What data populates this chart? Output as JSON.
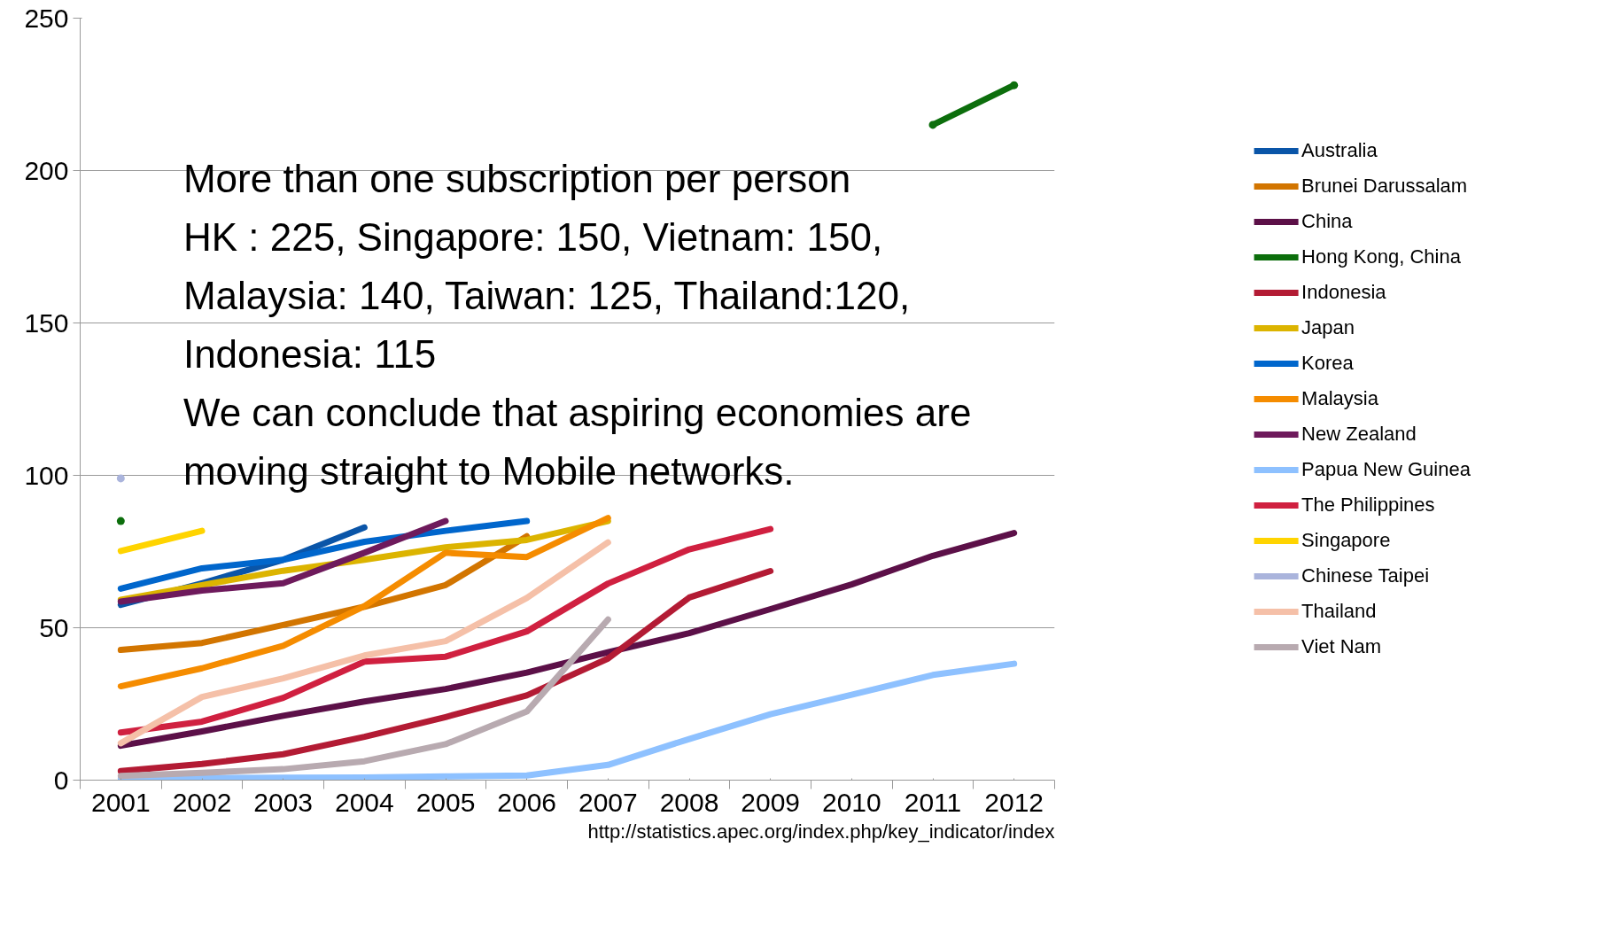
{
  "chart_data": {
    "type": "line",
    "categories": [
      "2001",
      "2002",
      "2003",
      "2004",
      "2005",
      "2006",
      "2007",
      "2008",
      "2009",
      "2010",
      "2011",
      "2012"
    ],
    "ylim": [
      0,
      250
    ],
    "yticks": [
      0,
      50,
      100,
      150,
      200,
      250
    ],
    "grid": "y",
    "legend": "right",
    "series": [
      {
        "name": "Australia",
        "color": "#0a55a8",
        "values": [
          57.5,
          64.6,
          72.3,
          82.9,
          null,
          null,
          null,
          null,
          null,
          null,
          null,
          null
        ]
      },
      {
        "name": "Brunei Darussalam",
        "color": "#d27500",
        "values": [
          42.7,
          45,
          50.9,
          56.9,
          64,
          80,
          null,
          null,
          null,
          null,
          null,
          null
        ]
      },
      {
        "name": "China",
        "color": "#5c1048",
        "values": [
          11.3,
          16,
          21.1,
          25.8,
          29.9,
          35.3,
          42,
          48.2,
          56.1,
          64.2,
          73.6,
          81.1
        ]
      },
      {
        "name": "Hong Kong, China",
        "color": "#0c6e0c",
        "marker": "circle",
        "values": [
          85,
          null,
          null,
          null,
          null,
          null,
          null,
          null,
          null,
          null,
          215,
          228
        ]
      },
      {
        "name": "Indonesia",
        "color": "#b31b34",
        "values": [
          3,
          5.3,
          8.5,
          14.2,
          20.7,
          27.8,
          39.9,
          59.9,
          68.6,
          null,
          null,
          null
        ]
      },
      {
        "name": "Japan",
        "color": "#dcb400",
        "values": [
          59.2,
          64,
          68.7,
          72.3,
          76.4,
          78.8,
          85,
          null,
          null,
          null,
          null,
          null
        ]
      },
      {
        "name": "Korea",
        "color": "#0066cc",
        "values": [
          62.8,
          69.5,
          72.3,
          78.2,
          81.8,
          85,
          null,
          null,
          null,
          null,
          null,
          null
        ]
      },
      {
        "name": "Malaysia",
        "color": "#f58c00",
        "values": [
          30.8,
          36.7,
          44.1,
          57.1,
          74.6,
          73.2,
          86,
          null,
          null,
          null,
          null,
          null
        ]
      },
      {
        "name": "New Zealand",
        "color": "#6e1a5c",
        "values": [
          58.6,
          62.2,
          64.6,
          74.6,
          85,
          null,
          null,
          null,
          null,
          null,
          null,
          null
        ]
      },
      {
        "name": "Papua New Guinea",
        "color": "#8ec1ff",
        "values": [
          0.6,
          0.7,
          0.8,
          0.9,
          1.2,
          1.5,
          5,
          13.5,
          21.6,
          28,
          34.5,
          38.2
        ]
      },
      {
        "name": "The Philippines",
        "color": "#d02040",
        "values": [
          15.6,
          19.2,
          27,
          38.9,
          40.5,
          48.8,
          64.5,
          75.7,
          82.4,
          null,
          null,
          null
        ]
      },
      {
        "name": "Singapore",
        "color": "#ffd400",
        "values": [
          75.2,
          81.8,
          null,
          null,
          null,
          null,
          null,
          null,
          null,
          null,
          null,
          null
        ]
      },
      {
        "name": "Chinese Taipei",
        "color": "#aab4dc",
        "marker": "circle",
        "values": [
          99,
          null,
          null,
          null,
          null,
          null,
          null,
          null,
          null,
          null,
          null,
          null
        ]
      },
      {
        "name": "Thailand",
        "color": "#f5c0a8",
        "values": [
          12.1,
          27.3,
          33.4,
          40.9,
          45.6,
          59.8,
          78,
          null,
          null,
          null,
          null,
          null
        ]
      },
      {
        "name": "Viet Nam",
        "color": "#b8aab0",
        "values": [
          1.4,
          2.4,
          3.6,
          6.2,
          11.8,
          22.5,
          52.7,
          null,
          null,
          null,
          null,
          null
        ]
      }
    ],
    "annotations": [
      "More than one subscription per person",
      "HK : 225, Singapore: 150, Vietnam: 150, Malaysia: 140, Taiwan: 125, Thailand:120, Indonesia: 115",
      "We can conclude that aspiring economies are moving straight to Mobile networks.",
      "http://statistics.apec.org/index.php/key_indicator/index"
    ]
  }
}
